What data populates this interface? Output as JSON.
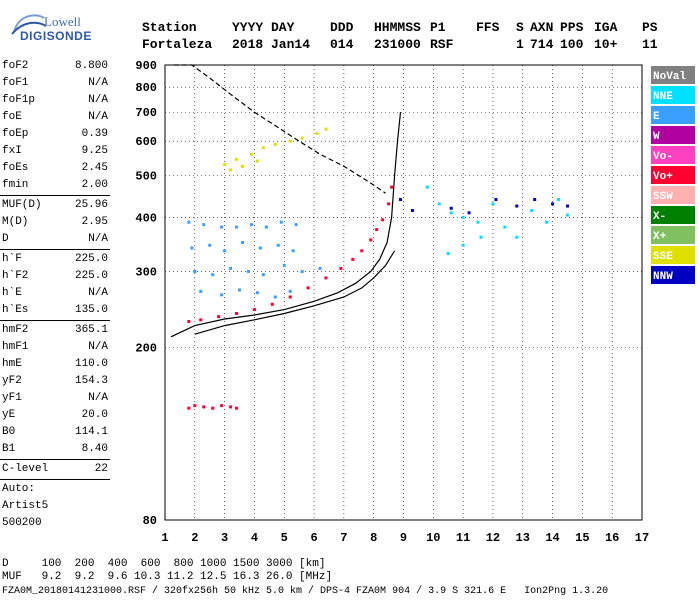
{
  "logo": {
    "line1": "Lowell",
    "line2": "DIGISONDE"
  },
  "header": {
    "row1": [
      "Station",
      "YYYY DAY",
      "DDD",
      "HHMMSS",
      "P1",
      "FFS",
      "S",
      "AXN",
      "PPS",
      "IGA",
      "PS"
    ],
    "row2": [
      "Fortaleza",
      "2018 Jan14",
      "014",
      "231000",
      "RSF",
      "",
      "1",
      "714",
      "100",
      "10+",
      "11"
    ]
  },
  "parameters": {
    "group1": [
      {
        "label": "foF2",
        "value": "8.800"
      },
      {
        "label": "foF1",
        "value": "N/A"
      },
      {
        "label": "foF1p",
        "value": "N/A"
      },
      {
        "label": "foE",
        "value": "N/A"
      },
      {
        "label": "foEp",
        "value": "0.39"
      },
      {
        "label": "fxI",
        "value": "9.25"
      },
      {
        "label": "foEs",
        "value": "2.45"
      },
      {
        "label": "fmin",
        "value": "2.00"
      }
    ],
    "group2": [
      {
        "label": "MUF(D)",
        "value": "25.96"
      },
      {
        "label": "M(D)",
        "value": "2.95"
      },
      {
        "label": "D",
        "value": "N/A"
      }
    ],
    "group3": [
      {
        "label": "h`F",
        "value": "225.0"
      },
      {
        "label": "h`F2",
        "value": "225.0"
      },
      {
        "label": "h`E",
        "value": "N/A"
      },
      {
        "label": "h`Es",
        "value": "135.0"
      }
    ],
    "group4": [
      {
        "label": "hmF2",
        "value": "365.1"
      },
      {
        "label": "hmF1",
        "value": "N/A"
      },
      {
        "label": "hmE",
        "value": "110.0"
      },
      {
        "label": "yF2",
        "value": "154.3"
      },
      {
        "label": "yF1",
        "value": "N/A"
      },
      {
        "label": "yE",
        "value": "20.0"
      },
      {
        "label": "B0",
        "value": "114.1"
      },
      {
        "label": "B1",
        "value": "8.40"
      }
    ],
    "group5": [
      {
        "label": "C-level",
        "value": "22"
      }
    ],
    "auto": [
      "Auto:",
      "Artist5",
      "500200"
    ]
  },
  "bottom": {
    "d_row": "D     100  200  400  600  800 1000 1500 3000 [km]",
    "muf_row": "MUF   9.2  9.2  9.6 10.3 11.2 12.5 16.3 26.0 [MHz]",
    "file_row": "FZA0M_20180141231000.RSF / 320fx256h 50 kHz 5.0 km / DPS-4 FZA0M 904 / 3.9 S 321.6 E   Ion2Png 1.3.20"
  },
  "chart_data": {
    "type": "scatter",
    "x_scale": "linear",
    "y_scale": "log",
    "xlim": [
      1,
      17
    ],
    "ylim": [
      80,
      900
    ],
    "x_ticks": [
      1,
      2,
      3,
      4,
      5,
      6,
      7,
      8,
      9,
      10,
      11,
      12,
      13,
      14,
      15,
      16,
      17
    ],
    "y_ticks": [
      80,
      200,
      300,
      400,
      500,
      600,
      700,
      800,
      900
    ],
    "grid": true,
    "legend_position": "right",
    "legend": [
      {
        "label": "NoVal",
        "color": "#808080",
        "text_color": "#ffffff"
      },
      {
        "label": "NNE",
        "color": "#00e0ff",
        "text_color": "#ffffff"
      },
      {
        "label": "E",
        "color": "#3aa0ff",
        "text_color": "#ffffff"
      },
      {
        "label": "W",
        "color": "#b000a0",
        "text_color": "#ffffff"
      },
      {
        "label": "Vo-",
        "color": "#ff40c0",
        "text_color": "#ffffff"
      },
      {
        "label": "Vo+",
        "color": "#ff0030",
        "text_color": "#ffffff"
      },
      {
        "label": "SSW",
        "color": "#ffb0b0",
        "text_color": "#ffffff"
      },
      {
        "label": "X-",
        "color": "#008000",
        "text_color": "#ffffff"
      },
      {
        "label": "X+",
        "color": "#80c060",
        "text_color": "#ffffff"
      },
      {
        "label": "SSE",
        "color": "#e0e000",
        "text_color": "#ffffff"
      },
      {
        "label": "NNW",
        "color": "#0000c0",
        "text_color": "#ffffff"
      }
    ],
    "series": [
      {
        "name": "O-trace",
        "color": "#ff0030",
        "points": [
          [
            1.8,
            230
          ],
          [
            2.2,
            232
          ],
          [
            2.8,
            236
          ],
          [
            3.4,
            240
          ],
          [
            4.0,
            245
          ],
          [
            4.6,
            252
          ],
          [
            5.2,
            262
          ],
          [
            5.8,
            275
          ],
          [
            6.4,
            290
          ],
          [
            6.9,
            305
          ],
          [
            7.3,
            320
          ],
          [
            7.6,
            335
          ],
          [
            7.9,
            355
          ],
          [
            8.1,
            375
          ],
          [
            8.3,
            395
          ],
          [
            8.5,
            430
          ],
          [
            8.6,
            470
          ]
        ]
      },
      {
        "name": "E-echoes",
        "color": "#3aa0ff",
        "points": [
          [
            1.8,
            390
          ],
          [
            2.3,
            385
          ],
          [
            2.9,
            380
          ],
          [
            3.4,
            380
          ],
          [
            3.9,
            385
          ],
          [
            4.4,
            380
          ],
          [
            4.9,
            390
          ],
          [
            5.4,
            385
          ],
          [
            1.9,
            340
          ],
          [
            2.5,
            345
          ],
          [
            3.0,
            335
          ],
          [
            3.6,
            350
          ],
          [
            4.2,
            340
          ],
          [
            4.8,
            345
          ],
          [
            5.3,
            335
          ],
          [
            2.0,
            300
          ],
          [
            2.6,
            295
          ],
          [
            3.2,
            305
          ],
          [
            3.8,
            300
          ],
          [
            4.3,
            295
          ],
          [
            5.0,
            310
          ],
          [
            5.6,
            300
          ],
          [
            6.2,
            305
          ],
          [
            2.2,
            270
          ],
          [
            2.9,
            265
          ],
          [
            3.5,
            272
          ],
          [
            4.1,
            268
          ],
          [
            4.7,
            262
          ],
          [
            5.2,
            270
          ]
        ]
      },
      {
        "name": "Es-echoes",
        "color": "#ff0030",
        "points": [
          [
            1.8,
            145
          ],
          [
            2.0,
            147
          ],
          [
            2.3,
            146
          ],
          [
            2.6,
            145
          ],
          [
            2.9,
            147
          ],
          [
            3.2,
            146
          ],
          [
            3.4,
            145
          ]
        ]
      },
      {
        "name": "high-echoes",
        "color": "#e0e000",
        "points": [
          [
            3.0,
            530
          ],
          [
            3.4,
            545
          ],
          [
            3.9,
            560
          ],
          [
            4.3,
            580
          ],
          [
            4.7,
            590
          ],
          [
            5.2,
            600
          ],
          [
            5.6,
            610
          ],
          [
            6.1,
            625
          ],
          [
            6.4,
            640
          ],
          [
            3.2,
            515
          ],
          [
            3.6,
            525
          ],
          [
            4.1,
            540
          ]
        ]
      },
      {
        "name": "X-ext",
        "color": "#00e0ff",
        "points": [
          [
            9.8,
            470
          ],
          [
            10.2,
            430
          ],
          [
            10.6,
            410
          ],
          [
            11.0,
            400
          ],
          [
            11.5,
            390
          ],
          [
            12.0,
            430
          ],
          [
            12.4,
            380
          ],
          [
            12.8,
            360
          ],
          [
            13.3,
            415
          ],
          [
            13.8,
            390
          ],
          [
            14.2,
            440
          ],
          [
            14.5,
            405
          ],
          [
            10.5,
            330
          ],
          [
            11.0,
            345
          ],
          [
            11.6,
            360
          ]
        ]
      },
      {
        "name": "NNW",
        "color": "#0000c0",
        "points": [
          [
            10.6,
            420
          ],
          [
            11.2,
            410
          ],
          [
            12.1,
            440
          ],
          [
            12.8,
            425
          ],
          [
            13.4,
            440
          ],
          [
            14.0,
            430
          ],
          [
            14.5,
            425
          ],
          [
            8.9,
            440
          ],
          [
            9.3,
            415
          ]
        ]
      }
    ],
    "curves": [
      {
        "name": "profile",
        "style": "solid",
        "points": [
          [
            1.2,
            212
          ],
          [
            2.0,
            225
          ],
          [
            3.0,
            233
          ],
          [
            4.0,
            238
          ],
          [
            5.0,
            245
          ],
          [
            6.0,
            256
          ],
          [
            6.8,
            268
          ],
          [
            7.4,
            282
          ],
          [
            7.9,
            300
          ],
          [
            8.2,
            320
          ],
          [
            8.45,
            350
          ],
          [
            8.6,
            400
          ],
          [
            8.7,
            500
          ],
          [
            8.8,
            600
          ],
          [
            8.9,
            700
          ]
        ]
      },
      {
        "name": "profile-lower",
        "style": "solid",
        "points": [
          [
            2.0,
            215
          ],
          [
            3.0,
            225
          ],
          [
            4.0,
            232
          ],
          [
            5.0,
            240
          ],
          [
            6.0,
            250
          ],
          [
            7.0,
            262
          ],
          [
            7.6,
            275
          ],
          [
            8.0,
            290
          ],
          [
            8.4,
            310
          ],
          [
            8.7,
            335
          ]
        ]
      },
      {
        "name": "muf",
        "style": "dashed",
        "points": [
          [
            1.3,
            900
          ],
          [
            1.9,
            900
          ],
          [
            2.5,
            840
          ],
          [
            3.2,
            770
          ],
          [
            4.0,
            700
          ],
          [
            4.8,
            645
          ],
          [
            5.5,
            600
          ],
          [
            6.2,
            560
          ],
          [
            7.0,
            525
          ],
          [
            7.6,
            495
          ],
          [
            8.0,
            475
          ],
          [
            8.4,
            455
          ]
        ]
      }
    ]
  }
}
